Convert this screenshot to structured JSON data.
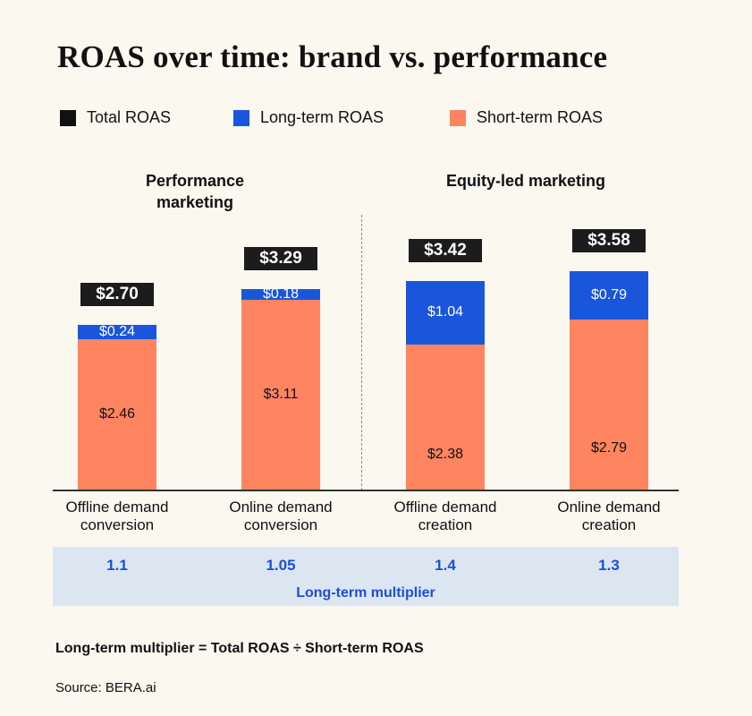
{
  "colors": {
    "total": "#111111",
    "long_term": "#1a56db",
    "short_term": "#ff8460",
    "multiplier_text": "#1d4ed8",
    "multiplier_band": "#dce6f1"
  },
  "chart_data": {
    "type": "bar",
    "stacked": true,
    "title": "ROAS over time: brand vs. performance",
    "legend": {
      "placement": "top-left",
      "entries": [
        "Total ROAS",
        "Long-term ROAS",
        "Short-term ROAS"
      ]
    },
    "groups": [
      {
        "label": "Performance marketing",
        "categories": [
          0,
          1
        ]
      },
      {
        "label": "Equity-led marketing",
        "categories": [
          2,
          3
        ]
      }
    ],
    "categories": [
      "Offline demand conversion",
      "Online demand conversion",
      "Offline demand creation",
      "Online demand creation"
    ],
    "series": [
      {
        "name": "Short-term ROAS",
        "values": [
          2.46,
          3.11,
          2.38,
          2.79
        ],
        "labels": [
          "$2.46",
          "$3.11",
          "$2.38",
          "$2.79"
        ]
      },
      {
        "name": "Long-term ROAS",
        "values": [
          0.24,
          0.18,
          1.04,
          0.79
        ],
        "labels": [
          "$0.24",
          "$0.18",
          "$1.04",
          "$0.79"
        ]
      }
    ],
    "totals": {
      "name": "Total ROAS",
      "values": [
        2.7,
        3.29,
        3.42,
        3.58
      ],
      "labels": [
        "$2.70",
        "$3.29",
        "$3.42",
        "$3.58"
      ]
    },
    "multiplier": {
      "label": "Long-term multiplier",
      "values": [
        "1.1",
        "1.05",
        "1.4",
        "1.3"
      ]
    },
    "ylim": [
      0,
      4
    ],
    "grid": false
  },
  "footnote": "Long-term multiplier = Total ROAS ÷ Short-term ROAS",
  "source": "Source: BERA.ai"
}
